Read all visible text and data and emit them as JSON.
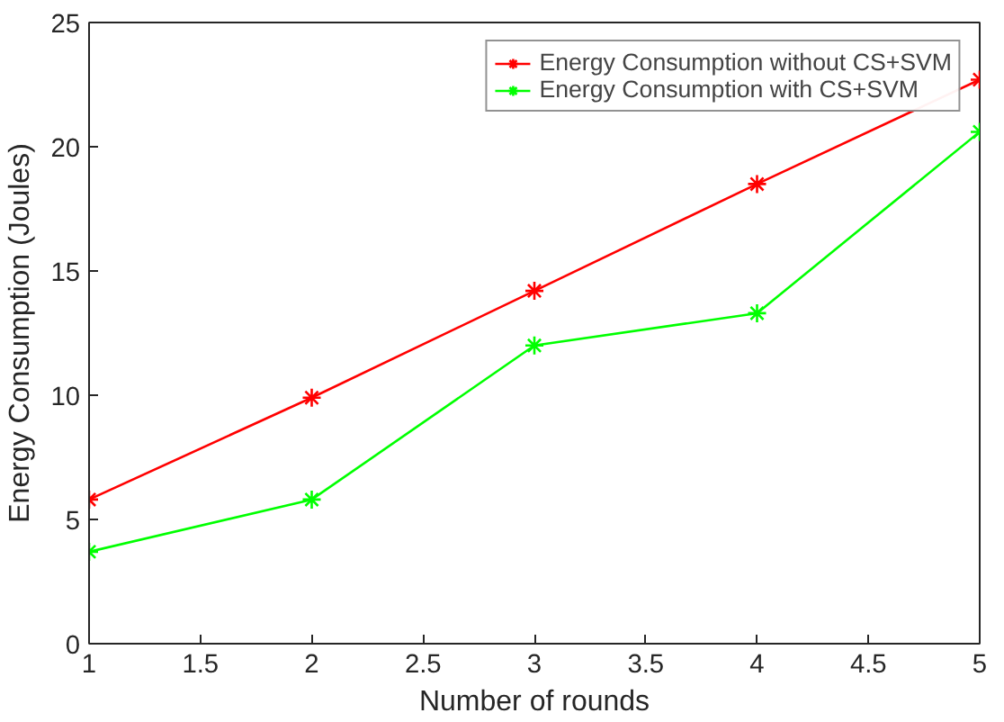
{
  "chart_data": {
    "type": "line",
    "xlabel": "Number of rounds",
    "ylabel": "Energy Consumption (Joules)",
    "x": [
      1,
      2,
      3,
      4,
      5
    ],
    "series": [
      {
        "name": "Energy Consumption without CS+SVM",
        "color": "#ff0000",
        "values": [
          5.8,
          9.9,
          14.2,
          18.5,
          22.7
        ]
      },
      {
        "name": "Energy Consumption with CS+SVM",
        "color": "#00ff00",
        "values": [
          3.7,
          5.8,
          12.0,
          13.3,
          20.6
        ]
      }
    ],
    "xlim": [
      1,
      5
    ],
    "ylim": [
      0,
      25
    ],
    "xticks": [
      1,
      1.5,
      2,
      2.5,
      3,
      3.5,
      4,
      4.5,
      5
    ],
    "yticks": [
      0,
      5,
      10,
      15,
      20,
      25
    ],
    "grid": false,
    "legend": "top right",
    "marker": "cross",
    "line_style": "solid"
  }
}
